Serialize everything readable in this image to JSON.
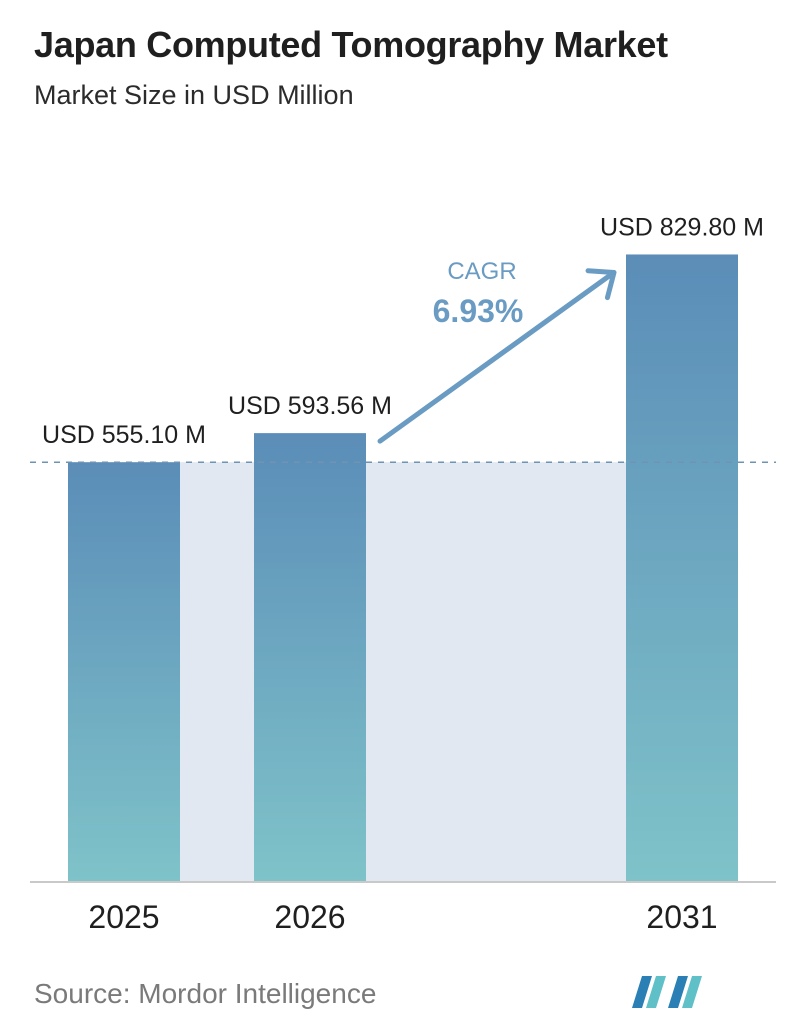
{
  "header": {
    "title": "Japan Computed Tomography Market",
    "subtitle": "Market Size in USD Million"
  },
  "chart_data": {
    "type": "bar",
    "categories": [
      "2025",
      "2026",
      "2031"
    ],
    "values": [
      555.1,
      593.56,
      829.8
    ],
    "value_labels": [
      "USD 555.10 M",
      "USD 593.56 M",
      "USD 829.80 M"
    ],
    "ylim": [
      0,
      960
    ],
    "xlabel": "",
    "ylabel": "",
    "cagr": {
      "label": "CAGR",
      "value": "6.93%"
    },
    "colors": {
      "bar_top": "#5b8db8",
      "bar_bottom": "#7fc3c9",
      "band": "#e1e8f1",
      "accent": "#6a9bc3"
    }
  },
  "footer": {
    "source": "Source:  Mordor Intelligence"
  }
}
